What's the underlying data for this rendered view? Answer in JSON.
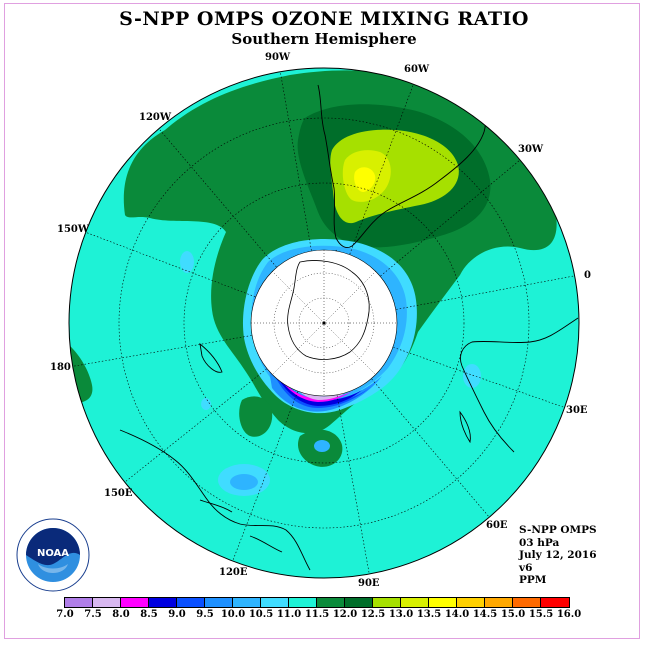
{
  "title": "S-NPP OMPS OZONE MIXING RATIO",
  "subtitle": "Southern Hemisphere",
  "longitude_labels": {
    "w90": "90W",
    "w60": "60W",
    "w30": "30W",
    "e0": "0",
    "e30": "30E",
    "e60": "60E",
    "e90": "90E",
    "e120": "120E",
    "e150": "150E",
    "e180": "180",
    "w150": "150W",
    "w120": "120W"
  },
  "info": {
    "instrument": "S-NPP OMPS",
    "level": "03 hPa",
    "date": "July 12, 2016",
    "version": "v6",
    "units": "PPM"
  },
  "logo": {
    "icon": "noaa-logo-icon",
    "text": "NOAA"
  },
  "colorbar": {
    "ticks": [
      "7.0",
      "7.5",
      "8.0",
      "8.5",
      "9.0",
      "9.5",
      "10.0",
      "10.5",
      "11.0",
      "11.5",
      "12.0",
      "12.5",
      "13.0",
      "13.5",
      "14.0",
      "14.5",
      "15.0",
      "15.5",
      "16.0"
    ],
    "colors": [
      "#b07ee8",
      "#d8b8f0",
      "#ff00ff",
      "#0000e0",
      "#0a50ff",
      "#1e90ff",
      "#2eb4ff",
      "#40dcff",
      "#1ef2d6",
      "#0a8a3a",
      "#006e2a",
      "#a6e000",
      "#d8f000",
      "#ffff00",
      "#ffd000",
      "#ffa800",
      "#ff6a00",
      "#ff0000",
      "#8a5a3c"
    ]
  },
  "colors": {
    "background": "#1ef2d6",
    "green": "#0a8a3a",
    "dark_green": "#006e2a",
    "yellow_green": "#a6e000",
    "pole_fill": "#ffffff"
  }
}
